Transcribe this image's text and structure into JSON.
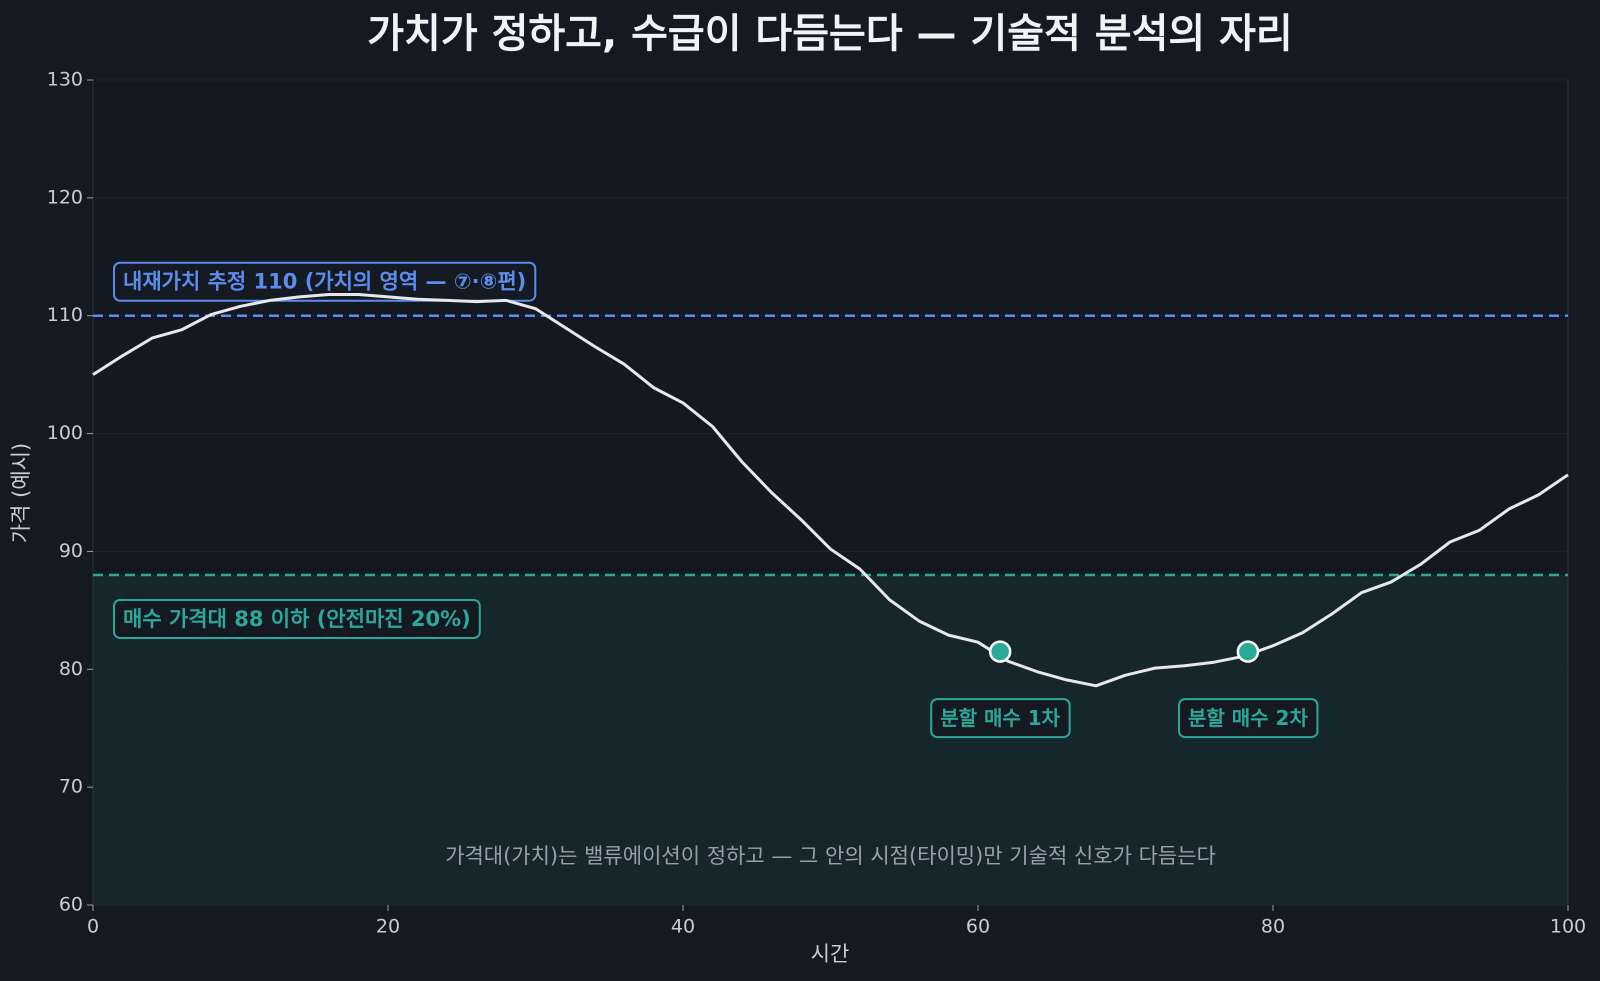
{
  "chart_data": {
    "type": "line",
    "title": "가치가 정하고, 수급이 다듬는다 — 기술적 분석의 자리",
    "x_label": "시간",
    "y_label": "가격 (예시)",
    "xlim": [
      0,
      100
    ],
    "ylim": [
      60,
      130
    ],
    "xticks": [
      0,
      20,
      40,
      60,
      80,
      100
    ],
    "yticks": [
      60,
      70,
      80,
      90,
      100,
      110,
      120,
      130
    ],
    "grid": true,
    "series": [
      {
        "name": "가격",
        "color": "#e6e8ee",
        "x": [
          0,
          2,
          4,
          6,
          8,
          10,
          12,
          14,
          16,
          18,
          20,
          22,
          24,
          26,
          28,
          30,
          32,
          34,
          36,
          38,
          40,
          42,
          44,
          46,
          48,
          50,
          52,
          54,
          56,
          58,
          60,
          62,
          64,
          66,
          68,
          70,
          72,
          74,
          76,
          78,
          80,
          82,
          84,
          86,
          88,
          90,
          92,
          94,
          96,
          98,
          100
        ],
        "values": [
          105,
          106.6,
          108.1,
          108.8,
          110.1,
          110.8,
          111.3,
          111.6,
          111.8,
          111.8,
          111.6,
          111.4,
          111.3,
          111.2,
          111.3,
          110.6,
          109,
          107.4,
          105.9,
          103.9,
          102.6,
          100.6,
          97.6,
          95,
          92.7,
          90.2,
          88.5,
          85.9,
          84.1,
          82.9,
          82.3,
          80.7,
          79.8,
          79.1,
          78.6,
          79.5,
          80.1,
          80.3,
          80.6,
          81.1,
          82,
          83.1,
          84.7,
          86.5,
          87.4,
          88.9,
          90.8,
          91.8,
          93.6,
          94.8,
          96.5
        ]
      }
    ],
    "reference_lines": [
      {
        "value": 110,
        "label": "내재가치 추정 110 (가치의 영역 — ⑦·⑧편)",
        "color": "#5b8def"
      },
      {
        "value": 88,
        "label": "매수 가격대 88 이하 (안전마진 20%)",
        "color": "#2aa89a"
      }
    ],
    "markers": [
      {
        "x": 61.5,
        "y": 81.5,
        "label": "분할 매수 1차",
        "color": "#2aa89a"
      },
      {
        "x": 78.3,
        "y": 81.5,
        "label": "분할 매수 2차",
        "color": "#2aa89a"
      }
    ],
    "note": "가격대(가치)는 밸류에이션이 정하고 — 그 안의 시점(타이밍)만 기술적 신호가 다듬는다"
  }
}
